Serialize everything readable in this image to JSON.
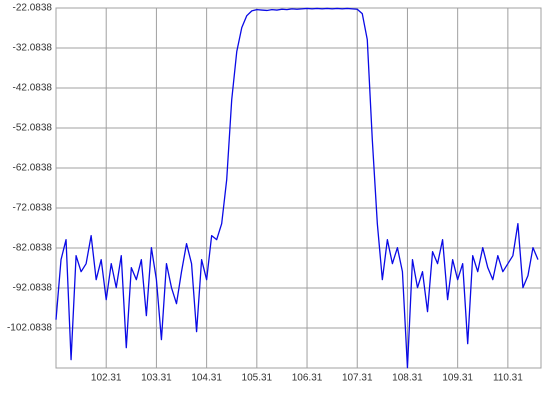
{
  "chart_data": {
    "type": "line",
    "color": "#0a0ae6",
    "grid": true,
    "xlim": [
      101.31,
      110.97
    ],
    "ylim": [
      -112.0838,
      -22.0838
    ],
    "xticks": [
      102.31,
      103.31,
      104.31,
      105.31,
      106.31,
      107.31,
      108.31,
      109.31,
      110.31
    ],
    "yticks": [
      -22.0838,
      -32.0838,
      -42.0838,
      -52.0838,
      -62.0838,
      -72.0838,
      -82.0838,
      -92.0838,
      -102.0838
    ],
    "x": [
      101.31,
      101.41,
      101.51,
      101.61,
      101.71,
      101.81,
      101.91,
      102.01,
      102.11,
      102.21,
      102.31,
      102.41,
      102.51,
      102.61,
      102.71,
      102.81,
      102.91,
      103.01,
      103.11,
      103.21,
      103.31,
      103.41,
      103.51,
      103.61,
      103.71,
      103.81,
      103.91,
      104.01,
      104.11,
      104.21,
      104.31,
      104.41,
      104.51,
      104.61,
      104.71,
      104.81,
      104.91,
      105.01,
      105.11,
      105.21,
      105.31,
      105.41,
      105.51,
      105.61,
      105.71,
      105.81,
      105.91,
      106.01,
      106.11,
      106.21,
      106.31,
      106.41,
      106.51,
      106.61,
      106.71,
      106.81,
      106.91,
      107.01,
      107.11,
      107.21,
      107.31,
      107.41,
      107.51,
      107.61,
      107.71,
      107.81,
      107.91,
      108.01,
      108.11,
      108.21,
      108.31,
      108.41,
      108.51,
      108.61,
      108.71,
      108.81,
      108.91,
      109.01,
      109.11,
      109.21,
      109.31,
      109.41,
      109.51,
      109.61,
      109.71,
      109.81,
      109.91,
      110.01,
      110.11,
      110.21,
      110.31,
      110.41,
      110.51,
      110.61,
      110.71,
      110.81,
      110.91
    ],
    "values": [
      -100,
      -85,
      -80,
      -110,
      -84,
      -88,
      -86,
      -79,
      -90,
      -85,
      -95,
      -86,
      -92,
      -84,
      -107,
      -87,
      -90,
      -85,
      -99,
      -82,
      -90,
      -105,
      -86,
      -92,
      -96,
      -88,
      -81,
      -86,
      -103,
      -85,
      -90,
      -79,
      -80,
      -76,
      -65,
      -45,
      -33,
      -27,
      -24,
      -22.8,
      -22.5,
      -22.6,
      -22.7,
      -22.5,
      -22.6,
      -22.4,
      -22.5,
      -22.3,
      -22.4,
      -22.3,
      -22.2,
      -22.3,
      -22.2,
      -22.3,
      -22.2,
      -22.3,
      -22.2,
      -22.3,
      -22.2,
      -22.3,
      -22.4,
      -23.5,
      -30,
      -55,
      -76,
      -90,
      -80,
      -86,
      -82,
      -88,
      -112,
      -85,
      -92,
      -88,
      -98,
      -83,
      -86,
      -80,
      -95,
      -85,
      -90,
      -86,
      -106,
      -84,
      -88,
      -82,
      -87,
      -90,
      -84,
      -88,
      -86,
      -84,
      -76,
      -92,
      -89,
      -82,
      -85
    ]
  }
}
